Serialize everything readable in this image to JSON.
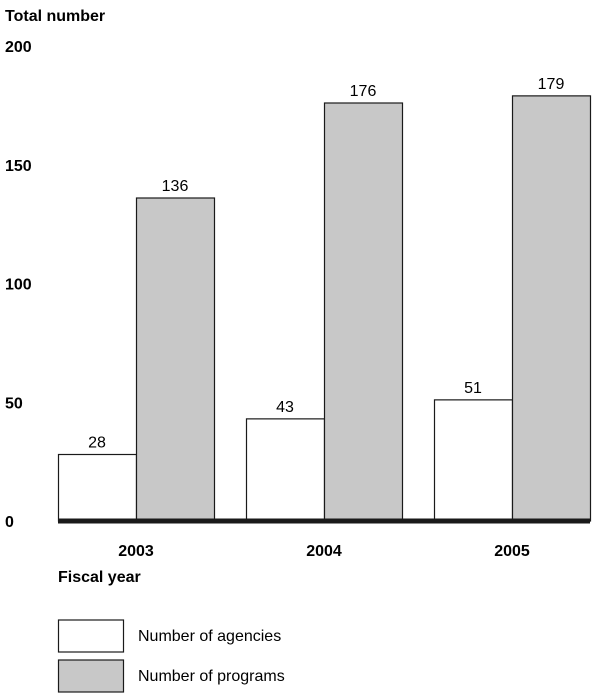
{
  "chart_data": {
    "type": "bar",
    "title": "",
    "ylabel": "Total number",
    "xlabel": "Fiscal year",
    "categories": [
      "2003",
      "2004",
      "2005"
    ],
    "ylim": [
      0,
      200
    ],
    "yticks": [
      "0",
      "50",
      "100",
      "150",
      "200"
    ],
    "grid": false,
    "legend_position": "bottom-left",
    "series": [
      {
        "name": "Number of agencies",
        "values": [
          28,
          43,
          51
        ],
        "color": "#ffffff"
      },
      {
        "name": "Number of programs",
        "values": [
          136,
          176,
          179
        ],
        "color": "#c8c8c8"
      }
    ]
  }
}
